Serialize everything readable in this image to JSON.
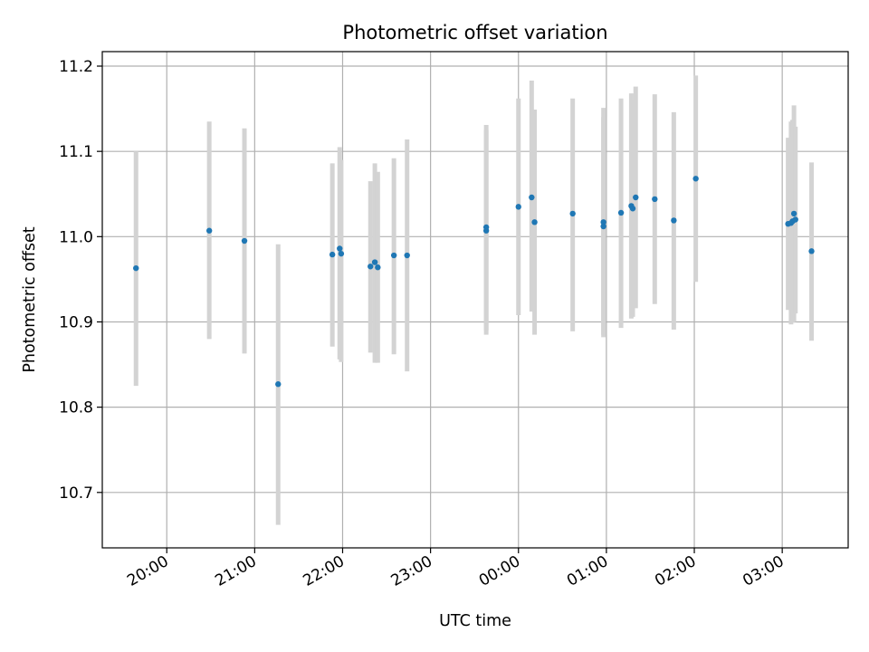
{
  "chart_data": {
    "type": "scatter",
    "title": "Photometric offset variation",
    "xlabel": "UTC time",
    "ylabel": "Photometric offset",
    "x_unit": "UTC hh:mm (times after midnight are on the following day)",
    "x_ticks": [
      "20:00",
      "21:00",
      "22:00",
      "23:00",
      "00:00",
      "01:00",
      "02:00",
      "03:00"
    ],
    "y_ticks": [
      "10.7",
      "10.8",
      "10.9",
      "11.0",
      "11.1",
      "11.2"
    ],
    "ylim": [
      10.635,
      11.217
    ],
    "xlim": [
      "19:16",
      "27:45"
    ],
    "grid": true,
    "marker_color": "#1f77b4",
    "errorbar_color": "#d3d3d3",
    "series": [
      {
        "points": [
          {
            "x": "19:39",
            "y": 10.963,
            "ylow": 10.825,
            "yhigh": 11.1
          },
          {
            "x": "20:29",
            "y": 11.007,
            "ylow": 10.88,
            "yhigh": 11.135
          },
          {
            "x": "20:53",
            "y": 10.995,
            "ylow": 10.863,
            "yhigh": 11.127
          },
          {
            "x": "21:16",
            "y": 10.827,
            "ylow": 10.662,
            "yhigh": 10.991
          },
          {
            "x": "21:53",
            "y": 10.979,
            "ylow": 10.871,
            "yhigh": 11.086
          },
          {
            "x": "21:58",
            "y": 10.986,
            "ylow": 10.856,
            "yhigh": 11.105
          },
          {
            "x": "21:59",
            "y": 10.98,
            "ylow": 10.853,
            "yhigh": 11.09
          },
          {
            "x": "22:19",
            "y": 10.965,
            "ylow": 10.864,
            "yhigh": 11.065
          },
          {
            "x": "22:22",
            "y": 10.97,
            "ylow": 10.852,
            "yhigh": 11.086
          },
          {
            "x": "22:24",
            "y": 10.964,
            "ylow": 10.852,
            "yhigh": 11.076
          },
          {
            "x": "22:35",
            "y": 10.978,
            "ylow": 10.862,
            "yhigh": 11.092
          },
          {
            "x": "22:44",
            "y": 10.978,
            "ylow": 10.842,
            "yhigh": 11.114
          },
          {
            "x": "23:38",
            "y": 11.007,
            "ylow": 10.885,
            "yhigh": 11.131
          },
          {
            "x": "23:38",
            "y": 11.011,
            "ylow": 10.89,
            "yhigh": 11.125
          },
          {
            "x": "24:00",
            "y": 11.035,
            "ylow": 10.908,
            "yhigh": 11.162
          },
          {
            "x": "24:09",
            "y": 11.046,
            "ylow": 10.912,
            "yhigh": 11.183
          },
          {
            "x": "24:11",
            "y": 11.017,
            "ylow": 10.885,
            "yhigh": 11.149
          },
          {
            "x": "24:37",
            "y": 11.027,
            "ylow": 10.889,
            "yhigh": 11.162
          },
          {
            "x": "24:58",
            "y": 11.017,
            "ylow": 10.882,
            "yhigh": 11.151
          },
          {
            "x": "24:58",
            "y": 11.012,
            "ylow": 10.885,
            "yhigh": 11.14
          },
          {
            "x": "25:10",
            "y": 11.028,
            "ylow": 10.893,
            "yhigh": 11.162
          },
          {
            "x": "25:17",
            "y": 11.036,
            "ylow": 10.904,
            "yhigh": 11.168
          },
          {
            "x": "25:18",
            "y": 11.033,
            "ylow": 10.906,
            "yhigh": 11.16
          },
          {
            "x": "25:20",
            "y": 11.046,
            "ylow": 10.916,
            "yhigh": 11.176
          },
          {
            "x": "25:33",
            "y": 11.044,
            "ylow": 10.921,
            "yhigh": 11.167
          },
          {
            "x": "25:46",
            "y": 11.019,
            "ylow": 10.891,
            "yhigh": 11.146
          },
          {
            "x": "26:01",
            "y": 11.068,
            "ylow": 10.947,
            "yhigh": 11.189
          },
          {
            "x": "27:04",
            "y": 11.015,
            "ylow": 10.914,
            "yhigh": 11.116
          },
          {
            "x": "27:06",
            "y": 11.016,
            "ylow": 10.897,
            "yhigh": 11.135
          },
          {
            "x": "27:07",
            "y": 11.018,
            "ylow": 10.899,
            "yhigh": 11.137
          },
          {
            "x": "27:08",
            "y": 11.027,
            "ylow": 10.9,
            "yhigh": 11.154
          },
          {
            "x": "27:09",
            "y": 11.02,
            "ylow": 10.91,
            "yhigh": 11.129
          },
          {
            "x": "27:20",
            "y": 10.983,
            "ylow": 10.878,
            "yhigh": 11.087
          }
        ]
      }
    ]
  }
}
